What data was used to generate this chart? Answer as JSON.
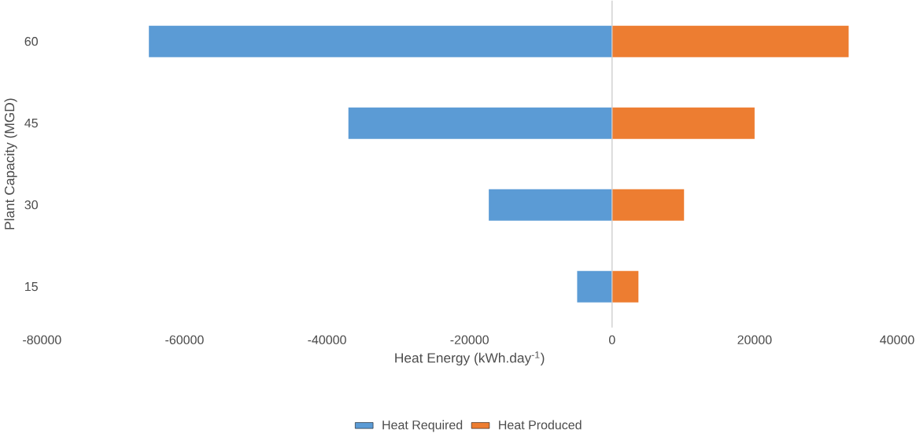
{
  "chart_data": {
    "type": "bar",
    "orientation": "horizontal",
    "xlabel": "Heat Energy (kWh.day$^{-1}$)",
    "ylabel": "Plant Capacity (MGD)",
    "categories": [
      "60",
      "45",
      "30",
      "15"
    ],
    "series": [
      {
        "name": "Heat Required",
        "color": "#5b9bd5",
        "values": [
          -65000,
          -37000,
          -17300,
          -4900
        ]
      },
      {
        "name": "Heat Produced",
        "color": "#ed7d31",
        "values": [
          33200,
          20000,
          10100,
          3700
        ]
      }
    ],
    "xlim": [
      -80000,
      40000
    ],
    "xticks": [
      -80000,
      -60000,
      -40000,
      -20000,
      0,
      20000,
      40000
    ],
    "legend": "bottom",
    "stacked": true
  }
}
